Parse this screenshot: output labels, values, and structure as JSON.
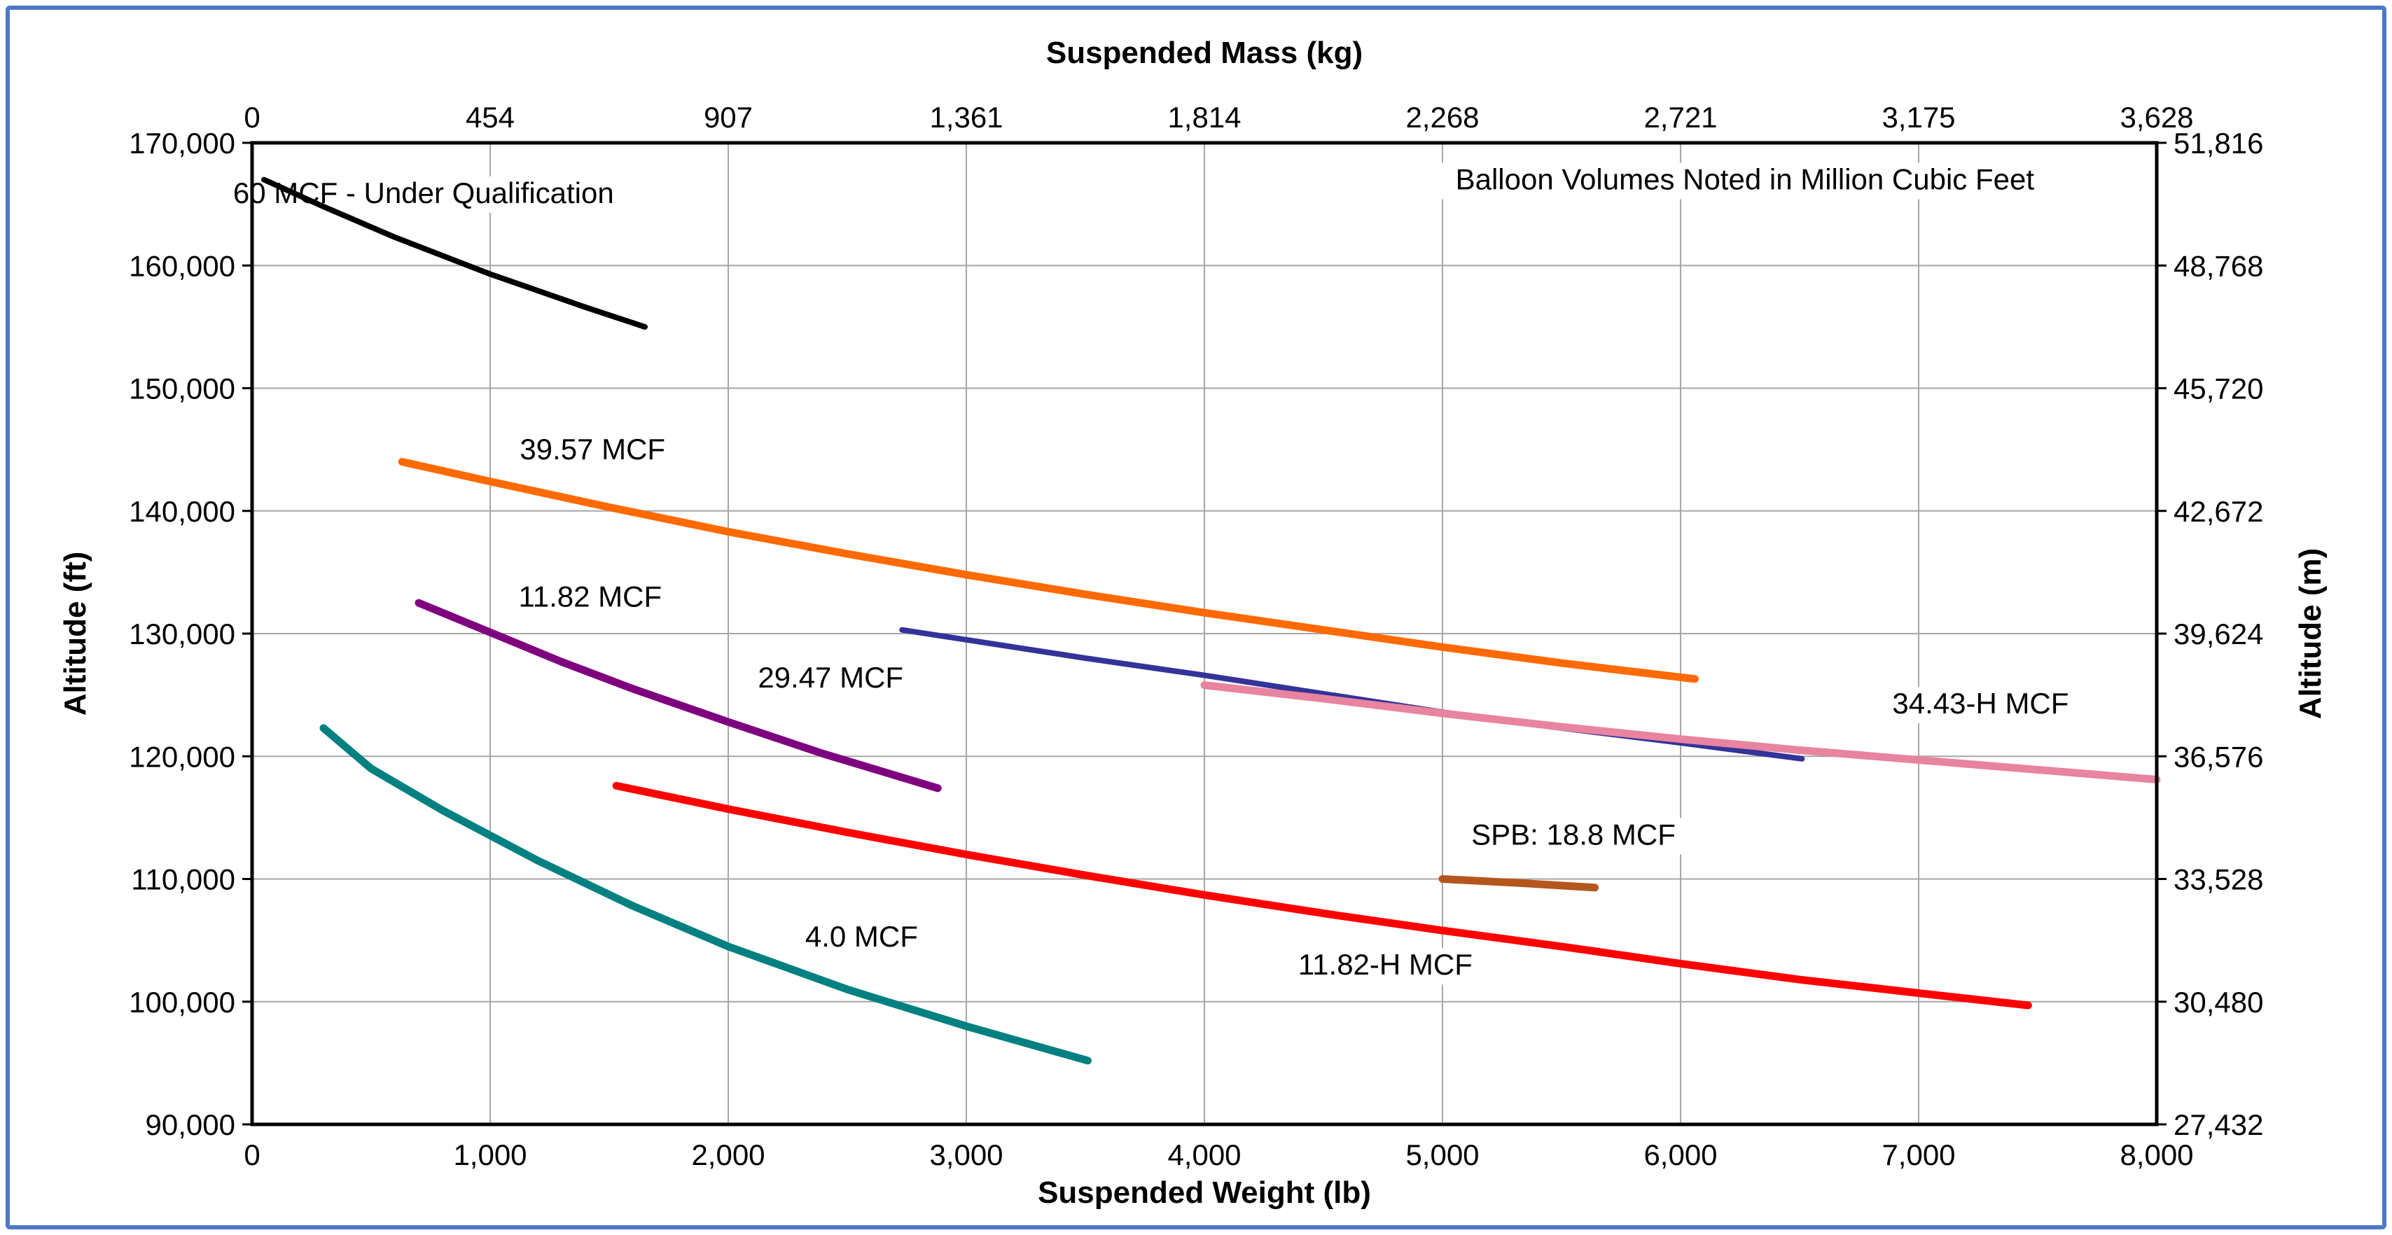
{
  "chart_data": {
    "type": "line",
    "title": "",
    "xlabel": "Suspended Weight (lb)",
    "x2label": "Suspended Mass (kg)",
    "ylabel": "Altitude (ft)",
    "y2label": "Altitude (m)",
    "xlim": [
      0,
      8000
    ],
    "ylim": [
      90000,
      170000
    ],
    "grid": true,
    "legend": "none",
    "x_ticks": [
      "0",
      "1,000",
      "2,000",
      "3,000",
      "4,000",
      "5,000",
      "6,000",
      "7,000",
      "8,000"
    ],
    "x2_ticks": [
      "0",
      "454",
      "907",
      "1,361",
      "1,814",
      "2,268",
      "2,721",
      "3,175",
      "3,628"
    ],
    "y_ticks": [
      "90,000",
      "100,000",
      "110,000",
      "120,000",
      "130,000",
      "140,000",
      "150,000",
      "160,000",
      "170,000"
    ],
    "y2_ticks": [
      "27,432",
      "30,480",
      "33,528",
      "36,576",
      "39,624",
      "42,672",
      "45,720",
      "48,768",
      "51,816"
    ],
    "annotations": [
      {
        "text": "60 MCF - Under Qualification",
        "x": 720,
        "y": 165100
      },
      {
        "text": "Balloon Volumes Noted in Million Cubic Feet",
        "x": 6270,
        "y": 166200
      },
      {
        "text": "39.57 MCF",
        "x": 1430,
        "y": 144200
      },
      {
        "text": "11.82 MCF",
        "x": 1420,
        "y": 132200
      },
      {
        "text": "29.47 MCF",
        "x": 2430,
        "y": 125600
      },
      {
        "text": "34.43-H MCF",
        "x": 7260,
        "y": 123500
      },
      {
        "text": "SPB: 18.8 MCF",
        "x": 5550,
        "y": 112800
      },
      {
        "text": "4.0 MCF",
        "x": 2560,
        "y": 104500
      },
      {
        "text": "11.82-H MCF",
        "x": 4760,
        "y": 102200
      }
    ],
    "series": [
      {
        "color": "#000000",
        "width": 8,
        "x": [
          50,
          300,
          600,
          1000,
          1400,
          1650
        ],
        "y": [
          167000,
          164800,
          162300,
          159300,
          156600,
          155000
        ]
      },
      {
        "color": "#ff6a00",
        "width": 11,
        "x": [
          630,
          1000,
          1500,
          2000,
          2500,
          3000,
          3500,
          4000,
          4500,
          5000,
          5500,
          6060
        ],
        "y": [
          144000,
          142400,
          140300,
          138300,
          136500,
          134800,
          133200,
          131700,
          130300,
          128900,
          127600,
          126300
        ]
      },
      {
        "color": "#7f007f",
        "width": 11,
        "x": [
          700,
          1000,
          1300,
          1600,
          2000,
          2400,
          2880
        ],
        "y": [
          132500,
          130100,
          127700,
          125500,
          122800,
          120200,
          117400
        ]
      },
      {
        "color": "#008080",
        "width": 11,
        "x": [
          300,
          500,
          800,
          1200,
          1600,
          2000,
          2500,
          3000,
          3510
        ],
        "y": [
          122300,
          119000,
          115600,
          111500,
          107800,
          104500,
          101000,
          98000,
          95200
        ]
      },
      {
        "color": "#ff0000",
        "width": 11,
        "x": [
          1530,
          2000,
          2500,
          3000,
          3500,
          4000,
          4500,
          5000,
          5500,
          6000,
          6500,
          7000,
          7460
        ],
        "y": [
          117600,
          115700,
          113800,
          112000,
          110300,
          108700,
          107200,
          105800,
          104500,
          103100,
          101800,
          100700,
          99700
        ]
      },
      {
        "color": "#333399",
        "width": 8,
        "x": [
          2730,
          3000,
          3500,
          4000,
          4500,
          5000,
          5500,
          6000,
          6510
        ],
        "y": [
          130300,
          129500,
          128000,
          126600,
          125100,
          123600,
          122300,
          121100,
          119800
        ]
      },
      {
        "color": "#e8849f",
        "width": 11,
        "x": [
          4000,
          4500,
          5000,
          5500,
          6000,
          6500,
          7000,
          7500,
          8000
        ],
        "y": [
          125800,
          124700,
          123500,
          122400,
          121400,
          120500,
          119700,
          118900,
          118100
        ]
      },
      {
        "color": "#b5561c",
        "width": 11,
        "x": [
          5000,
          5300,
          5640
        ],
        "y": [
          110000,
          109700,
          109300
        ]
      }
    ]
  }
}
